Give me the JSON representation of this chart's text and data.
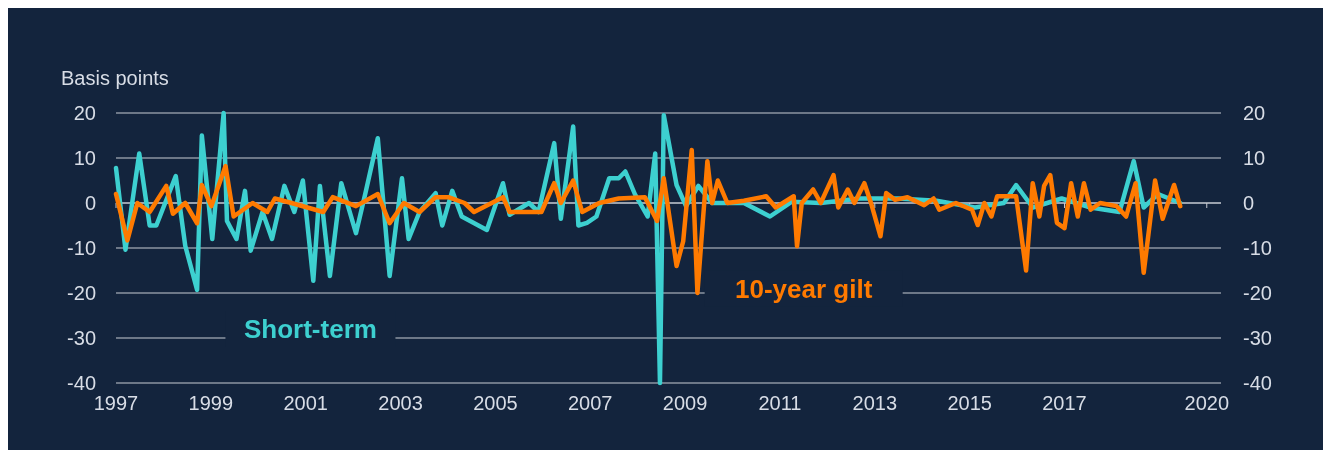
{
  "chart_data": {
    "type": "line",
    "ylabel": "Basis points",
    "ylim": [
      -40,
      20
    ],
    "yticks": [
      -40,
      -30,
      -20,
      -10,
      0,
      10,
      20
    ],
    "y2lim": [
      -40,
      20
    ],
    "y2ticks": [
      -40,
      -30,
      -20,
      -10,
      0,
      10,
      20
    ],
    "xlim": [
      1997,
      2020.3
    ],
    "xticks": [
      1997,
      1999,
      2001,
      2003,
      2005,
      2007,
      2009,
      2011,
      2013,
      2015,
      2017,
      2020
    ],
    "grid": "y",
    "legend": false,
    "series": [
      {
        "name": "Short-term",
        "color": "#3dd0d0",
        "x": [
          1997.0,
          1997.2,
          1997.49,
          1997.71,
          1997.85,
          1998.26,
          1998.46,
          1998.71,
          1998.81,
          1999.03,
          1999.27,
          1999.34,
          1999.54,
          1999.72,
          1999.84,
          2000.09,
          2000.29,
          2000.55,
          2000.76,
          2000.94,
          2001.16,
          2001.3,
          2001.51,
          2001.75,
          2002.06,
          2002.26,
          2002.52,
          2002.77,
          2003.03,
          2003.17,
          2003.4,
          2003.74,
          2003.88,
          2004.09,
          2004.29,
          2004.82,
          2005.16,
          2005.3,
          2005.71,
          2005.91,
          2006.24,
          2006.38,
          2006.64,
          2006.75,
          2006.93,
          2007.13,
          2007.4,
          2007.6,
          2007.74,
          2007.94,
          2008.21,
          2008.37,
          2008.47,
          2008.55,
          2008.82,
          2009.02,
          2009.28,
          2009.57,
          2010.24,
          2010.79,
          2011.25,
          2011.86,
          2012.68,
          2013.49,
          2014.3,
          2015.11,
          2015.72,
          2015.98,
          2016.33,
          2016.94,
          2017.55,
          2018.16,
          2018.46,
          2018.67,
          2018.97,
          2019.44
        ],
        "values": [
          7.8,
          -10.4,
          11,
          -5,
          -5,
          6,
          -9.5,
          -19.3,
          15,
          -8,
          20,
          -4,
          -8,
          2.7,
          -10.6,
          -2,
          -8,
          3.8,
          -2,
          5,
          -17.3,
          3.8,
          -16.2,
          4.4,
          -6.7,
          2.2,
          14.4,
          -16.2,
          5.5,
          -8,
          -2,
          2.2,
          -5,
          2.7,
          -3,
          -6,
          4.4,
          -2.6,
          0,
          -2,
          13.3,
          -3.5,
          17,
          -5,
          -4.4,
          -3,
          5.5,
          5.5,
          7,
          2,
          -3,
          11,
          -40,
          19.5,
          4,
          -0.7,
          3.8,
          0,
          0,
          -3,
          0.3,
          0,
          1,
          1,
          0.5,
          -1,
          0,
          4,
          -1,
          1,
          -1,
          -2,
          9.3,
          -1,
          2,
          0
        ]
      },
      {
        "name": "10-year gilt",
        "color": "#ff7a00",
        "x": [
          1997.0,
          1997.24,
          1997.45,
          1997.71,
          1998.06,
          1998.2,
          1998.46,
          1998.71,
          1998.81,
          1999.01,
          1999.31,
          1999.48,
          1999.88,
          2000.19,
          2000.35,
          2000.7,
          2001.37,
          2001.57,
          2002.06,
          2002.52,
          2002.77,
          2003.07,
          2003.4,
          2003.74,
          2004.01,
          2004.35,
          2004.55,
          2005.16,
          2005.3,
          2005.97,
          2006.24,
          2006.38,
          2006.64,
          2006.83,
          2007.19,
          2007.6,
          2008.15,
          2008.41,
          2008.55,
          2008.82,
          2008.96,
          2009.14,
          2009.26,
          2009.47,
          2009.57,
          2009.69,
          2009.89,
          2010.24,
          2010.71,
          2010.91,
          2011.29,
          2011.36,
          2011.46,
          2011.7,
          2011.86,
          2012.13,
          2012.23,
          2012.43,
          2012.57,
          2012.78,
          2012.92,
          2013.12,
          2013.24,
          2013.43,
          2013.69,
          2014.04,
          2014.24,
          2014.36,
          2014.71,
          2015.05,
          2015.17,
          2015.31,
          2015.46,
          2015.58,
          2015.98,
          2016.19,
          2016.33,
          2016.47,
          2016.57,
          2016.7,
          2016.84,
          2017.0,
          2017.14,
          2017.28,
          2017.41,
          2017.55,
          2017.75,
          2018.1,
          2018.3,
          2018.5,
          2018.67,
          2018.91,
          2019.07,
          2019.31,
          2019.44
        ],
        "values": [
          2,
          -8.3,
          0,
          -2,
          3.8,
          -2.4,
          0,
          -4.5,
          4,
          -0.7,
          8.2,
          -3,
          0,
          -2,
          1,
          0,
          -2,
          1.3,
          -0.7,
          2,
          -4.5,
          0,
          -2,
          1.3,
          1.3,
          0,
          -2,
          1.3,
          -2,
          -2,
          4.4,
          0,
          5,
          -2,
          0,
          1,
          1.3,
          -4,
          5.5,
          -14,
          -8.5,
          11.8,
          -20,
          9.3,
          0,
          5,
          0,
          0.5,
          1.5,
          -1,
          1.5,
          -9.6,
          0,
          3,
          0,
          6.2,
          -1,
          3,
          0,
          4.4,
          0,
          -7.4,
          2.2,
          0.7,
          1.3,
          -0.5,
          1,
          -1.5,
          0,
          -1.5,
          -4.9,
          0,
          -3,
          1.5,
          1.5,
          -15,
          4.4,
          -3,
          3.8,
          6.2,
          -4.4,
          -5.6,
          4.4,
          -3,
          4.4,
          -1.5,
          0,
          -0.7,
          -3,
          4.4,
          -15.5,
          5,
          -3.5,
          4,
          -0.7
        ]
      }
    ]
  }
}
